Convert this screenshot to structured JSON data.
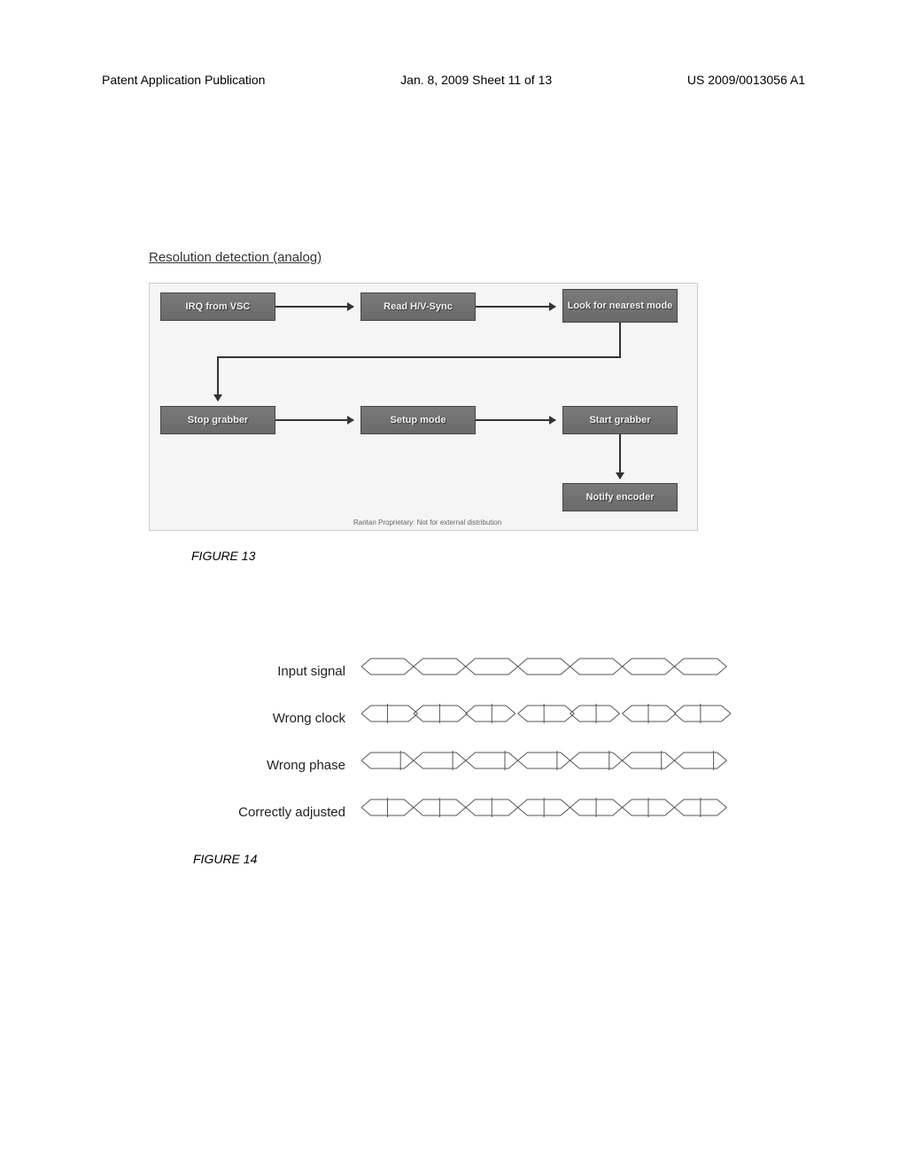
{
  "header": {
    "left": "Patent Application Publication",
    "center": "Jan. 8, 2009  Sheet 11 of 13",
    "right": "US 2009/0013056 A1"
  },
  "figure13": {
    "title": "Resolution detection (analog)",
    "caption": "FIGURE 13",
    "footer_note": "Raritan Proprietary: Not for external distribution",
    "boxes": {
      "irq": "IRQ from VSC",
      "read": "Read H/V-Sync",
      "look": "Look for nearest mode",
      "stop": "Stop grabber",
      "setup": "Setup mode",
      "start": "Start grabber",
      "notify": "Notify encoder"
    },
    "box_color": "#6a6a6a",
    "text_color": "#f0f0f0",
    "arrow_color": "#333333"
  },
  "figure14": {
    "caption": "FIGURE 14",
    "rows": [
      {
        "label": "Input signal",
        "ticks": false,
        "cells": 7,
        "phase": 0
      },
      {
        "label": "Wrong clock",
        "ticks": true,
        "cells": 7,
        "phase": 0,
        "stretch": true
      },
      {
        "label": "Wrong phase",
        "ticks": true,
        "cells": 7,
        "phase": 0.5
      },
      {
        "label": "Correctly adjusted",
        "ticks": true,
        "cells": 7,
        "phase": 0
      }
    ],
    "stroke_color": "#555555",
    "stroke_width": 1
  }
}
